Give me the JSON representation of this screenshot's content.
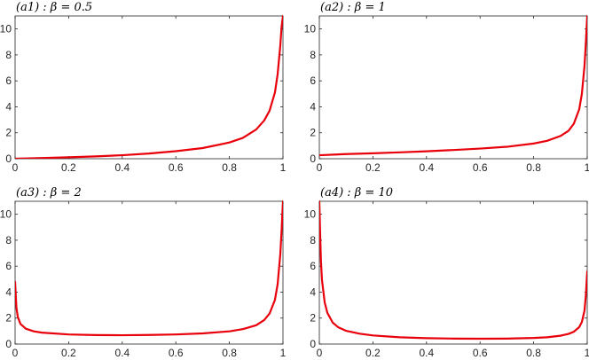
{
  "chart_data": [
    {
      "type": "line",
      "title": "(a1) : β = 0.5",
      "xlim": [
        0,
        1
      ],
      "ylim": [
        0,
        11
      ],
      "xticks": [
        "0",
        "0.2",
        "0.4",
        "0.6",
        "0.8",
        "1"
      ],
      "yticks": [
        "0",
        "2",
        "4",
        "6",
        "8",
        "10"
      ],
      "grid": false,
      "color": "#e8000b",
      "series": [
        {
          "x": [
            0.0,
            0.1,
            0.2,
            0.3,
            0.4,
            0.5,
            0.6,
            0.7,
            0.8,
            0.85,
            0.9,
            0.93,
            0.95,
            0.97,
            0.98,
            0.99,
            0.995,
            1.0
          ],
          "y": [
            0.0,
            0.05,
            0.11,
            0.18,
            0.27,
            0.4,
            0.58,
            0.82,
            1.25,
            1.6,
            2.25,
            2.95,
            3.7,
            5.1,
            6.5,
            8.7,
            10.2,
            11.0
          ]
        }
      ]
    },
    {
      "type": "line",
      "title": "(a2) : β = 1",
      "xlim": [
        0,
        1
      ],
      "ylim": [
        0,
        11
      ],
      "xticks": [
        "0",
        "0.2",
        "0.4",
        "0.6",
        "0.8",
        "1"
      ],
      "yticks": [
        "0",
        "2",
        "4",
        "6",
        "8",
        "10"
      ],
      "grid": false,
      "color": "#e8000b",
      "series": [
        {
          "x": [
            0.0,
            0.1,
            0.2,
            0.3,
            0.4,
            0.5,
            0.6,
            0.7,
            0.8,
            0.85,
            0.9,
            0.93,
            0.95,
            0.97,
            0.98,
            0.99,
            0.995,
            1.0
          ],
          "y": [
            0.27,
            0.36,
            0.42,
            0.49,
            0.57,
            0.67,
            0.78,
            0.92,
            1.17,
            1.38,
            1.75,
            2.15,
            2.7,
            3.8,
            5.0,
            7.2,
            9.0,
            11.0
          ]
        }
      ]
    },
    {
      "type": "line",
      "title": "(a3) : β = 2",
      "xlim": [
        0,
        1
      ],
      "ylim": [
        0,
        11
      ],
      "xticks": [
        "0",
        "0.2",
        "0.4",
        "0.6",
        "0.8",
        "1"
      ],
      "yticks": [
        "0",
        "2",
        "4",
        "6",
        "8",
        "10"
      ],
      "grid": false,
      "color": "#e8000b",
      "series": [
        {
          "x": [
            0.0,
            0.005,
            0.01,
            0.02,
            0.04,
            0.07,
            0.1,
            0.2,
            0.3,
            0.4,
            0.5,
            0.6,
            0.7,
            0.8,
            0.85,
            0.9,
            0.93,
            0.95,
            0.97,
            0.98,
            0.99,
            0.995,
            1.0
          ],
          "y": [
            4.8,
            2.8,
            2.1,
            1.55,
            1.18,
            0.98,
            0.88,
            0.74,
            0.69,
            0.68,
            0.7,
            0.74,
            0.82,
            0.98,
            1.15,
            1.45,
            1.85,
            2.35,
            3.4,
            4.6,
            6.9,
            8.8,
            11.0
          ]
        }
      ]
    },
    {
      "type": "line",
      "title": "(a4) : β = 10",
      "xlim": [
        0,
        1
      ],
      "ylim": [
        0,
        11
      ],
      "xticks": [
        "0",
        "0.2",
        "0.4",
        "0.6",
        "0.8",
        "1"
      ],
      "yticks": [
        "0",
        "2",
        "4",
        "6",
        "8",
        "10"
      ],
      "grid": false,
      "color": "#e8000b",
      "series": [
        {
          "x": [
            0.0,
            0.003,
            0.006,
            0.01,
            0.02,
            0.03,
            0.05,
            0.07,
            0.1,
            0.15,
            0.2,
            0.3,
            0.4,
            0.5,
            0.6,
            0.7,
            0.8,
            0.85,
            0.9,
            0.93,
            0.95,
            0.97,
            0.98,
            0.99,
            0.995,
            1.0
          ],
          "y": [
            11.0,
            8.5,
            6.4,
            4.9,
            3.2,
            2.4,
            1.65,
            1.3,
            1.02,
            0.8,
            0.66,
            0.52,
            0.45,
            0.42,
            0.41,
            0.42,
            0.47,
            0.52,
            0.64,
            0.78,
            0.95,
            1.3,
            1.7,
            2.6,
            3.8,
            5.6
          ]
        }
      ]
    }
  ]
}
